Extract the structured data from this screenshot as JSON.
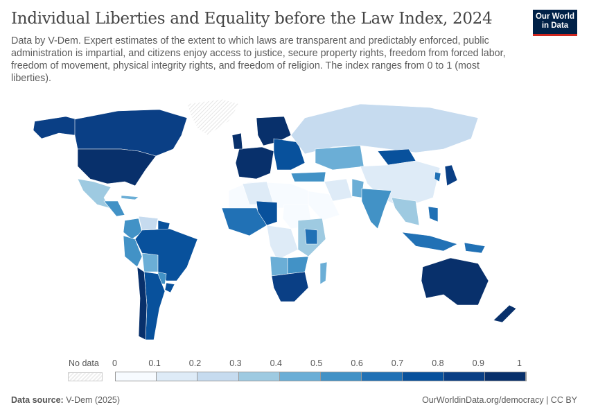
{
  "header": {
    "title": "Individual Liberties and Equality before the Law Index, 2024",
    "subtitle": "Data by V-Dem. Expert estimates of the extent to which laws are transparent and predictably enforced, public administration is impartial, and citizens enjoy access to justice, secure property rights, freedom from forced labor, freedom of movement, physical integrity rights, and freedom of religion. The index ranges from 0 to 1 (most liberties).",
    "logo": "Our World in Data"
  },
  "legend": {
    "no_data_label": "No data",
    "ticks": [
      "0",
      "0.1",
      "0.2",
      "0.3",
      "0.4",
      "0.5",
      "0.6",
      "0.7",
      "0.8",
      "0.9",
      "1"
    ],
    "colors": [
      "#f7fbff",
      "#deebf7",
      "#c6dbef",
      "#9ecae1",
      "#6baed6",
      "#4292c6",
      "#2171b5",
      "#08519c",
      "#0a3f85",
      "#08306b"
    ]
  },
  "footer": {
    "source_label": "Data source:",
    "source": "V-Dem (2025)",
    "link": "OurWorldinData.org/democracy | CC BY"
  }
}
